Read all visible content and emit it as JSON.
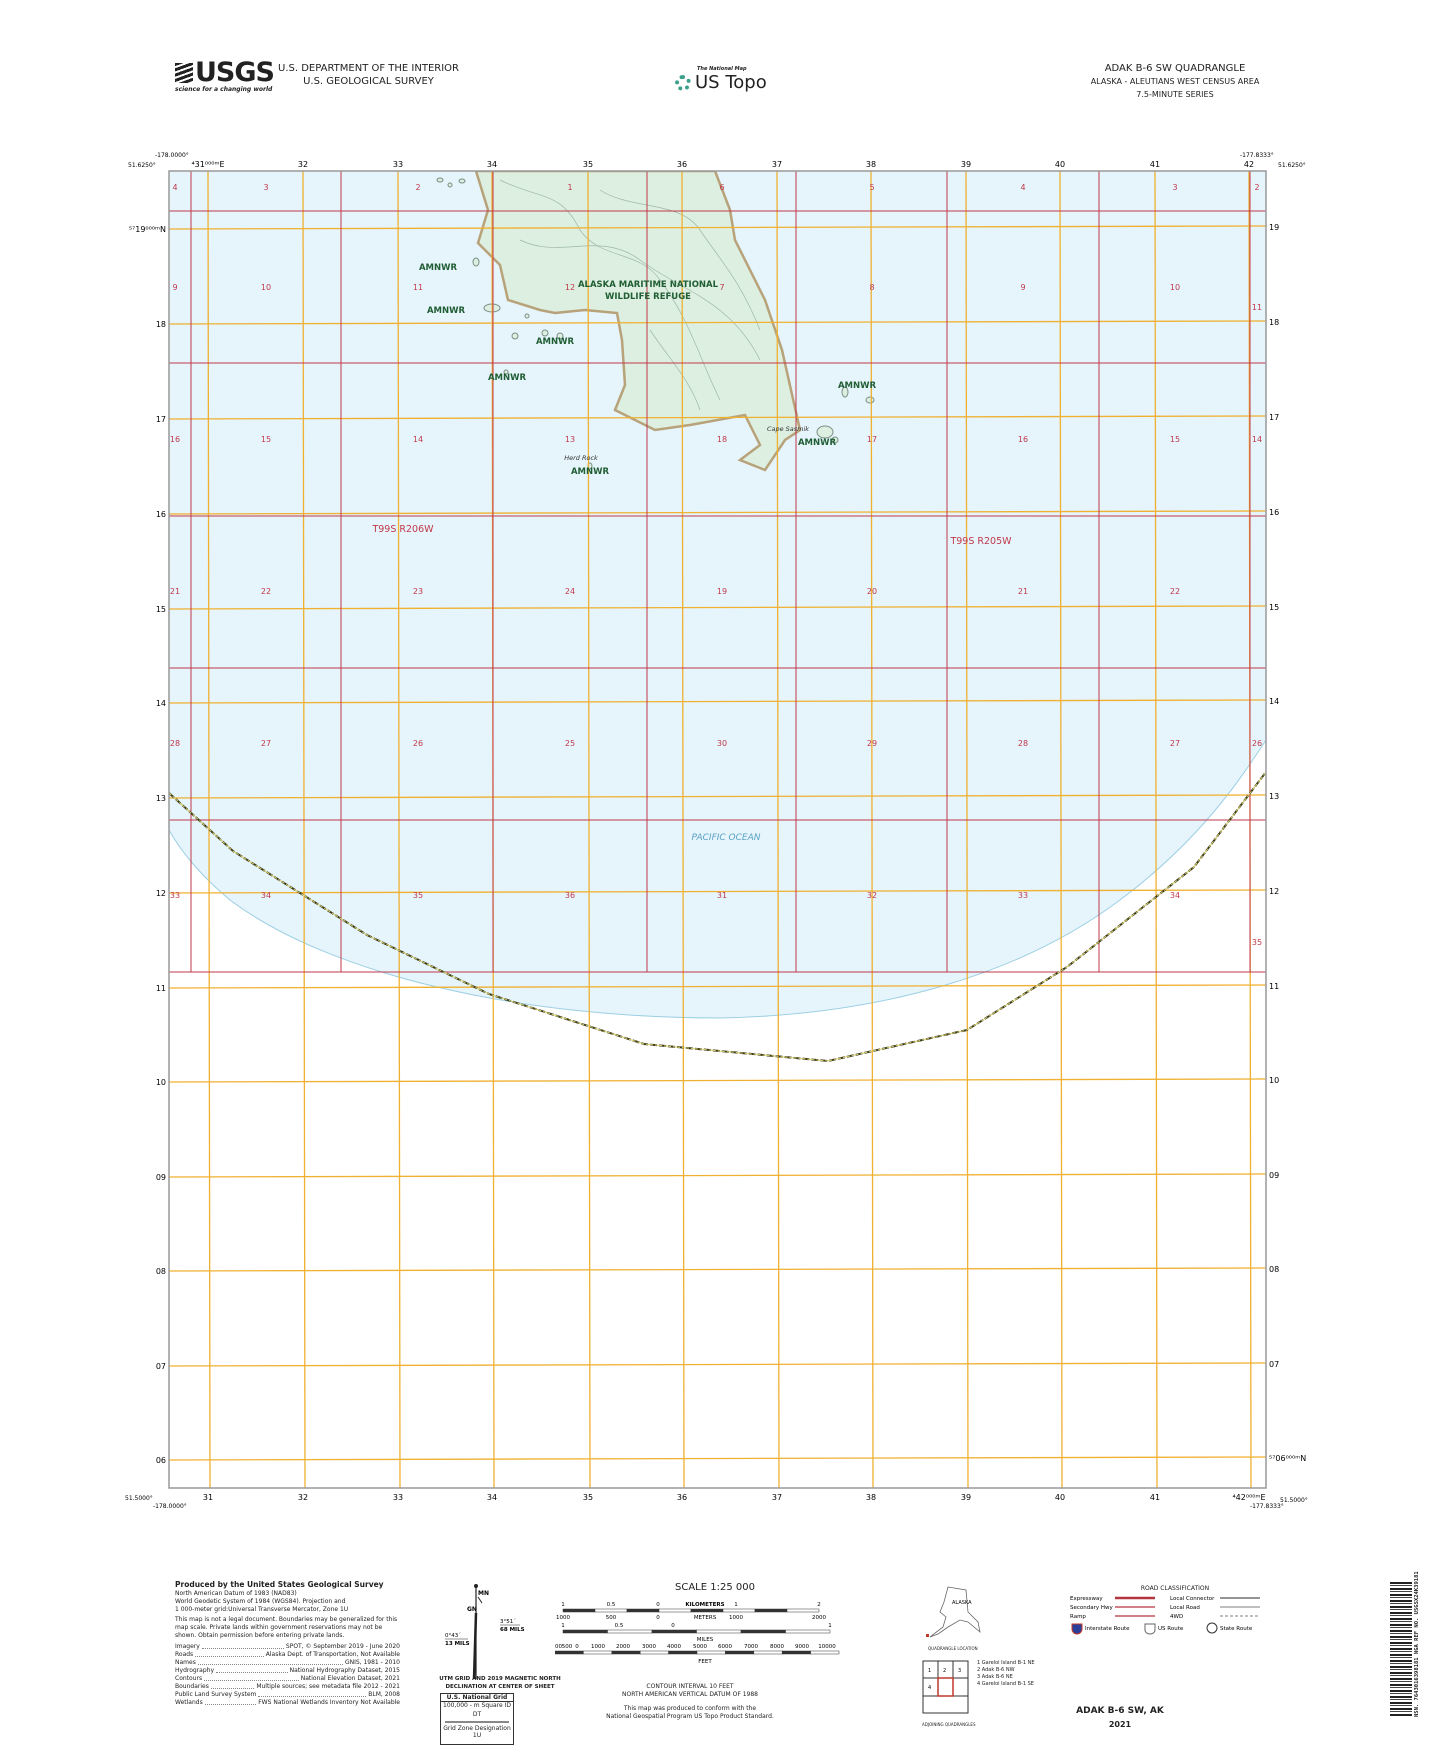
{
  "header": {
    "agency_logo": "USGS",
    "agency_tagline": "science for a changing world",
    "dept_line1": "U.S. DEPARTMENT OF THE INTERIOR",
    "dept_line2": "U.S. GEOLOGICAL SURVEY",
    "product_small": "The National Map",
    "product": "US Topo",
    "quad_title": "ADAK B-6 SW QUADRANGLE",
    "quad_area": "ALASKA - ALEUTIANS WEST CENSUS AREA",
    "quad_series": "7.5-MINUTE SERIES"
  },
  "corners": {
    "top_left_lon": "-178.0000°",
    "top_left_lat": "51.6250°",
    "top_right_lon": "-177.8333°",
    "top_right_lat": "51.6250°",
    "bottom_left_lat": "51.5000°",
    "bottom_left_lon": "-178.0000°",
    "bottom_right_lon": "-177.8333°",
    "bottom_right_lat": "51.5000°"
  },
  "grid": {
    "eastings_top": [
      "⁴31⁰⁰⁰ᵐE",
      "32",
      "33",
      "34",
      "35",
      "36",
      "37",
      "38",
      "39",
      "40",
      "41",
      "42"
    ],
    "eastings_bottom": [
      "31",
      "32",
      "33",
      "34",
      "35",
      "36",
      "37",
      "38",
      "39",
      "40",
      "41",
      "⁴42⁰⁰⁰ᵐE"
    ],
    "northings_left": [
      "⁵⁷19⁰⁰⁰ᵐN",
      "18",
      "17",
      "16",
      "15",
      "14",
      "13",
      "12",
      "11",
      "10",
      "09",
      "08",
      "07",
      "06"
    ],
    "northings_right": [
      "19",
      "18",
      "17",
      "16",
      "15",
      "14",
      "13",
      "12",
      "11",
      "10",
      "09",
      "08",
      "07",
      "⁵⁷06⁰⁰⁰ᵐN"
    ]
  },
  "sections": [
    [
      "4",
      "3",
      "2",
      "1",
      "6",
      "5",
      "4",
      "3",
      "2"
    ],
    [
      "9",
      "10",
      "11",
      "12",
      "7",
      "8",
      "9",
      "10",
      "11"
    ],
    [
      "16",
      "15",
      "14",
      "13",
      "18",
      "17",
      "16",
      "15",
      "14"
    ],
    [
      "21",
      "22",
      "23",
      "24",
      "19",
      "20",
      "21",
      "22",
      ""
    ],
    [
      "28",
      "27",
      "26",
      "25",
      "30",
      "29",
      "28",
      "27",
      "26"
    ],
    [
      "33",
      "34",
      "35",
      "36",
      "31",
      "32",
      "33",
      "34",
      "35"
    ]
  ],
  "map_labels": {
    "refuge_line1": "ALASKA MARITIME NATIONAL",
    "refuge_line2": "WILDLIFE REFUGE",
    "amnwr": "AMNWR",
    "cape": "Cape Sasmik",
    "rock": "Herd Rock",
    "ocean": "PACIFIC OCEAN",
    "township_west": "T99S R206W",
    "township_east": "T99S R205W"
  },
  "colors": {
    "water": "#e6f4fb",
    "land": "#dcefe0",
    "section_line": "#c0394b",
    "utm_grid": "#f0b030",
    "label_green": "#1f5d33",
    "section_num": "#c0394b"
  },
  "footer": {
    "produced_by": "Produced by the United States Geological Survey",
    "datum_lines": [
      "North American Datum of 1983 (NAD83)",
      "World Geodetic System of 1984 (WGS84). Projection and",
      "1 000-meter grid:Universal Transverse Mercator, Zone 1U"
    ],
    "legal": "This map is not a legal document. Boundaries may be generalized for this map scale. Private lands within government reservations may not be shown. Obtain permission before entering private lands.",
    "sources": [
      [
        "Imagery",
        "SPOT, © September 2019 - June 2020"
      ],
      [
        "Roads",
        "Alaska Dept. of Transportation, Not Available"
      ],
      [
        "Names",
        "GNIS, 1981 - 2010"
      ],
      [
        "Hydrography",
        "National Hydrography Dataset, 2015"
      ],
      [
        "Contours",
        "National Elevation Dataset, 2021"
      ],
      [
        "Boundaries",
        "Multiple sources; see metadata file 2012 - 2021"
      ],
      [
        "Public Land Survey System",
        "BLM, 2008"
      ],
      [
        "Wetlands",
        "FWS National Wetlands Inventory Not Available"
      ]
    ],
    "declination": {
      "mn": "MN",
      "gn": "GN",
      "left_angle": "0°43´",
      "left_mils": "13 MILS",
      "right_angle": "3°51´",
      "right_mils": "68 MILS",
      "caption1": "UTM GRID AND 2019 MAGNETIC NORTH",
      "caption2": "DECLINATION AT CENTER OF SHEET"
    },
    "usng": {
      "title": "U.S. National Grid",
      "sub": "100,000 - m Square ID",
      "square": "DT",
      "gzd_label": "Grid Zone Designation",
      "gzd": "1U"
    },
    "scale": {
      "title": "SCALE 1:25 000",
      "km_labels": [
        "1",
        "0.5",
        "0",
        "KILOMETERS",
        "1",
        "2"
      ],
      "m_labels": [
        "1000",
        "500",
        "0",
        "METERS",
        "1000",
        "2000"
      ],
      "mi_labels": [
        "1",
        "0.5",
        "0",
        "MILES",
        "1"
      ],
      "ft_labels": [
        "1000",
        "500",
        "0",
        "1000",
        "2000",
        "3000",
        "4000",
        "5000",
        "6000",
        "7000",
        "8000",
        "9000",
        "10000"
      ],
      "ft_unit": "FEET"
    },
    "contour1": "CONTOUR INTERVAL 10 FEET",
    "contour2": "NORTH AMERICAN VERTICAL DATUM OF 1988",
    "standard1": "This map was produced to conform with the",
    "standard2": "National Geospatial Program US Topo Product Standard.",
    "location_state": "ALASKA",
    "location_caption": "QUADRANGLE LOCATION",
    "adjoining": [
      "1 Gareloi Island B-1 NE",
      "2 Adak B-6 NW",
      "3 Adak B-6 NE",
      "4 Gareloi Island B-1 SE"
    ],
    "adjoining_caption": "ADJOINING QUADRANGLES",
    "road": {
      "title": "ROAD CLASSIFICATION",
      "left": [
        "Expressway",
        "Secondary Hwy",
        "Ramp"
      ],
      "right": [
        "Local Connector",
        "Local Road",
        "4WD"
      ],
      "shields": [
        "Interstate Route",
        "US Route",
        "State Route"
      ]
    },
    "sheet_title": "ADAK B-6 SW,  AK",
    "year": "2021",
    "barcode_text": "NSN. 7643016398181 NGA REF NO. USGSX24K39181"
  }
}
